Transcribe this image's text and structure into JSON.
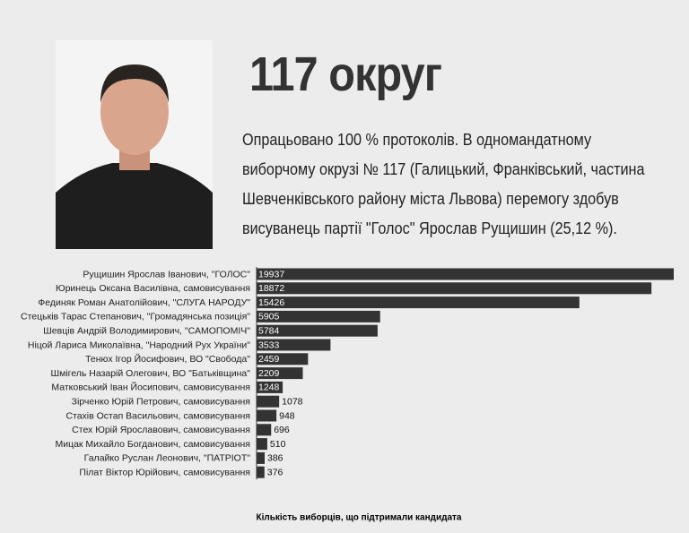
{
  "chart_data": {
    "type": "bar",
    "orientation": "horizontal",
    "title": "117 округ",
    "subtitle": "Опрацьовано 100 % протоколів. В одномандатному виборчому окрузі № 117 (Галицький, Франківський, частина Шевченківського району міста Львова) перемогу здобув висуванець партії \"Голос\" Ярослав Рущишин (25,12 %).",
    "x_label": "Кількість виборців, що підтримали кандидата",
    "color": "#333333",
    "categories": [
      "Рущишин Ярослав Іванович, \"ГОЛОС\"",
      "Юринець Оксана Василівна, самовисування",
      "Фединяк Роман Анатолійович, \"СЛУГА НАРОДУ\"",
      "Стецьків Тарас Степанович, \"Громадянська позиція\"",
      "Шевців Андрій Володимирович, \"САМОПОМІЧ\"",
      "Ніцой Лариса Миколаївна, \"Народний Рух України\"",
      "Тенюх Ігор Йосифович, ВО \"Свобода\"",
      "Шмігель Назарій Олегович, ВО \"Батьківщина\"",
      "Матковський Іван Йосипович, самовисування",
      "Зірченко Юрій Петрович, самовисування",
      "Стахів Остап Васильович, самовисування",
      "Стех Юрій Ярославович, самовисування",
      "Мицак Михайло Богданович, самовисування",
      "Галайко Руслан Леонович, \"ПАТРІОТ\"",
      "Пілат Віктор Юрійович, самовисування"
    ],
    "values": [
      19937,
      18872,
      15426,
      5905,
      5784,
      3533,
      2459,
      2209,
      1248,
      1078,
      948,
      696,
      510,
      386,
      376
    ]
  }
}
